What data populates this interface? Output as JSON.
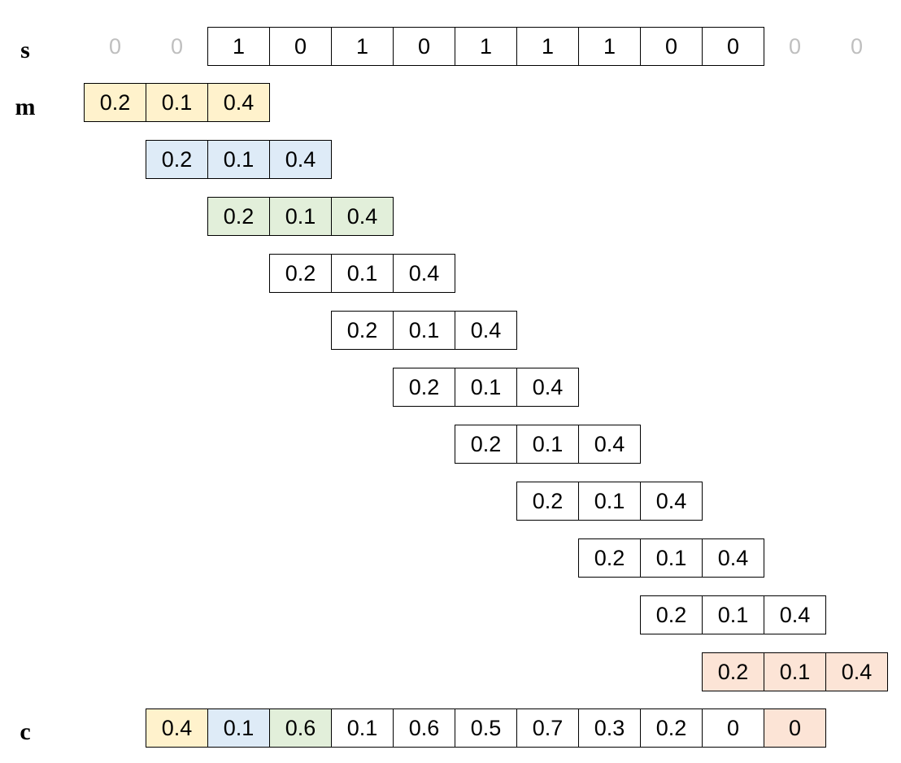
{
  "labels": {
    "s": "s",
    "m": "m",
    "c": "c"
  },
  "signal": [
    "0",
    "0",
    "1",
    "0",
    "1",
    "0",
    "1",
    "1",
    "1",
    "0",
    "0",
    "0",
    "0"
  ],
  "signal_padded": [
    true,
    true,
    false,
    false,
    false,
    false,
    false,
    false,
    false,
    false,
    false,
    true,
    true
  ],
  "mask": [
    "0.2",
    "0.1",
    "0.4"
  ],
  "mask_rows": [
    {
      "tint": "yellow"
    },
    {
      "tint": "blue"
    },
    {
      "tint": "green"
    },
    {
      "tint": ""
    },
    {
      "tint": ""
    },
    {
      "tint": ""
    },
    {
      "tint": ""
    },
    {
      "tint": ""
    },
    {
      "tint": ""
    },
    {
      "tint": ""
    },
    {
      "tint": "red"
    }
  ],
  "result": [
    {
      "value": "0.4",
      "tint": "yellow"
    },
    {
      "value": "0.1",
      "tint": "blue"
    },
    {
      "value": "0.6",
      "tint": "green"
    },
    {
      "value": "0.1",
      "tint": ""
    },
    {
      "value": "0.6",
      "tint": ""
    },
    {
      "value": "0.5",
      "tint": ""
    },
    {
      "value": "0.7",
      "tint": ""
    },
    {
      "value": "0.3",
      "tint": ""
    },
    {
      "value": "0.2",
      "tint": ""
    },
    {
      "value": "0",
      "tint": ""
    },
    {
      "value": "0",
      "tint": "red"
    }
  ],
  "colors": {
    "yellow": "#fff2cc",
    "blue": "#deebf7",
    "green": "#e2efda",
    "red": "#fce4d6"
  }
}
